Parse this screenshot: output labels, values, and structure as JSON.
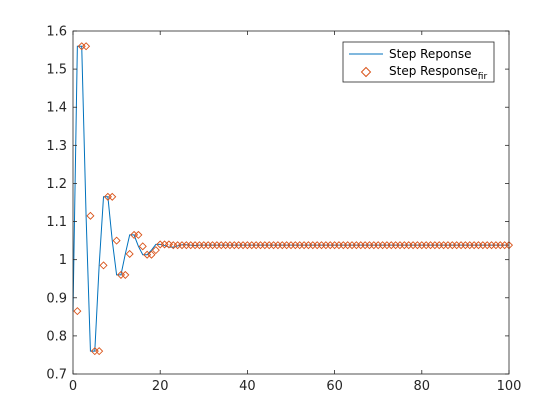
{
  "chart_data": {
    "type": "line",
    "title": "",
    "xlabel": "",
    "ylabel": "",
    "xlim": [
      0,
      100
    ],
    "ylim": [
      0.7,
      1.6
    ],
    "xticks": [
      0,
      20,
      40,
      60,
      80,
      100
    ],
    "yticks": [
      0.7,
      0.8,
      0.9,
      1.0,
      1.1,
      1.2,
      1.3,
      1.4,
      1.5,
      1.6
    ],
    "xtick_labels": [
      "0",
      "20",
      "40",
      "60",
      "80",
      "100"
    ],
    "ytick_labels": [
      "0.7",
      "0.8",
      "0.9",
      "1",
      "1.1",
      "1.2",
      "1.3",
      "1.4",
      "1.5",
      "1.6"
    ],
    "grid": false,
    "legend_position": "top-right",
    "colors": {
      "line": "#0072BD",
      "marker": "#D95319",
      "axis": "#262626"
    },
    "series": [
      {
        "name": "Step Reponse",
        "style": "line",
        "x": [
          0,
          1,
          2,
          3,
          4,
          5,
          6,
          7,
          8,
          9,
          10,
          11,
          12,
          13,
          14,
          15,
          16,
          17,
          18,
          19,
          20,
          21,
          22,
          23,
          24,
          25,
          26,
          27,
          28,
          29,
          30,
          35,
          40,
          45,
          50,
          55,
          60,
          65,
          70,
          75,
          80,
          85,
          90,
          95,
          100
        ],
        "y": [
          0.865,
          1.56,
          1.56,
          1.115,
          0.76,
          0.76,
          0.985,
          1.165,
          1.165,
          1.05,
          0.96,
          0.96,
          1.015,
          1.065,
          1.065,
          1.035,
          1.013,
          1.013,
          1.025,
          1.04,
          1.04,
          1.037,
          1.033,
          1.033,
          1.036,
          1.039,
          1.039,
          1.038,
          1.037,
          1.038,
          1.038,
          1.038,
          1.038,
          1.038,
          1.038,
          1.038,
          1.038,
          1.038,
          1.038,
          1.038,
          1.038,
          1.038,
          1.038,
          1.038,
          1.038
        ]
      },
      {
        "name": "Step Response",
        "name_subscript": "fir",
        "style": "diamond-markers",
        "x": [
          1,
          2,
          3,
          4,
          5,
          6,
          7,
          8,
          9,
          10,
          11,
          12,
          13,
          14,
          15,
          16,
          17,
          18,
          19,
          20,
          21,
          22,
          23,
          24,
          25,
          26,
          27,
          28,
          29,
          30,
          31,
          32,
          33,
          34,
          35,
          36,
          37,
          38,
          39,
          40,
          41,
          42,
          43,
          44,
          45,
          46,
          47,
          48,
          49,
          50,
          51,
          52,
          53,
          54,
          55,
          56,
          57,
          58,
          59,
          60,
          61,
          62,
          63,
          64,
          65,
          66,
          67,
          68,
          69,
          70,
          71,
          72,
          73,
          74,
          75,
          76,
          77,
          78,
          79,
          80,
          81,
          82,
          83,
          84,
          85,
          86,
          87,
          88,
          89,
          90,
          91,
          92,
          93,
          94,
          95,
          96,
          97,
          98,
          99,
          100
        ],
        "y": [
          0.865,
          1.56,
          1.56,
          1.115,
          0.76,
          0.76,
          0.985,
          1.165,
          1.165,
          1.05,
          0.96,
          0.96,
          1.015,
          1.065,
          1.065,
          1.035,
          1.013,
          1.013,
          1.025,
          1.04,
          1.04,
          1.04,
          1.038,
          1.038,
          1.038,
          1.038,
          1.038,
          1.038,
          1.038,
          1.038,
          1.038,
          1.038,
          1.038,
          1.038,
          1.038,
          1.038,
          1.038,
          1.038,
          1.038,
          1.038,
          1.038,
          1.038,
          1.038,
          1.038,
          1.038,
          1.038,
          1.038,
          1.038,
          1.038,
          1.038,
          1.038,
          1.038,
          1.038,
          1.038,
          1.038,
          1.038,
          1.038,
          1.038,
          1.038,
          1.038,
          1.038,
          1.038,
          1.038,
          1.038,
          1.038,
          1.038,
          1.038,
          1.038,
          1.038,
          1.038,
          1.038,
          1.038,
          1.038,
          1.038,
          1.038,
          1.038,
          1.038,
          1.038,
          1.038,
          1.038,
          1.038,
          1.038,
          1.038,
          1.038,
          1.038,
          1.038,
          1.038,
          1.038,
          1.038,
          1.038,
          1.038,
          1.038,
          1.038,
          1.038,
          1.038,
          1.038,
          1.038,
          1.038,
          1.038,
          1.038
        ]
      }
    ]
  }
}
